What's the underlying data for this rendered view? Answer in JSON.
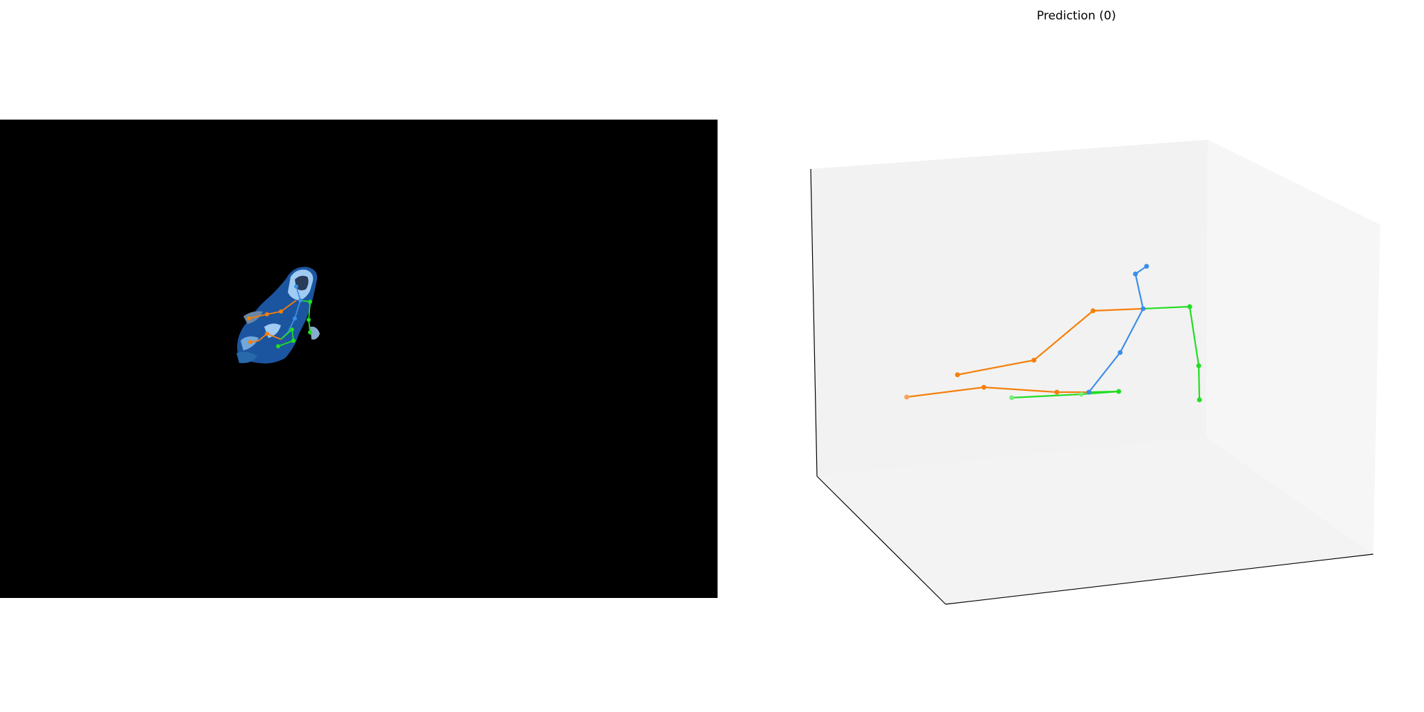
{
  "figure": {
    "background": "#ffffff",
    "right_panel": {
      "title": "Prediction (0)",
      "pane_colors": {
        "back": "#f2f2f2",
        "side": "#f5f5f5",
        "floor": "#f4f4f4"
      },
      "axis_line_color": "#000000"
    },
    "left_panel": {
      "background": "#000000",
      "description_only_visual": true
    }
  },
  "skeleton_colors": {
    "spine": "#3b8ee8",
    "left_limbs": "#f57f0a",
    "right_limbs": "#22dd22"
  }
}
